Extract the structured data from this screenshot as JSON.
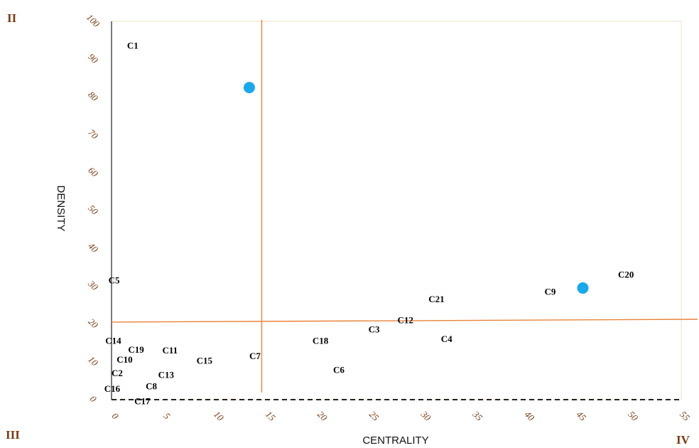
{
  "chart_data": {
    "type": "scatter",
    "xlabel": "CENTRALITY",
    "ylabel": "DENSITY",
    "xlim": [
      0,
      55
    ],
    "ylim": [
      0,
      100
    ],
    "x_ticks": [
      0,
      5,
      10,
      15,
      20,
      25,
      30,
      35,
      40,
      45,
      50,
      55
    ],
    "y_ticks": [
      0,
      10,
      20,
      30,
      40,
      50,
      60,
      70,
      80,
      90,
      100
    ],
    "x_tick_labels": [
      "0",
      "5",
      "10",
      "15",
      "20",
      "25",
      "30",
      "35",
      "40",
      "45",
      "50",
      "55"
    ],
    "y_tick_labels": [
      "0",
      "10",
      "20",
      "30",
      "40",
      "50",
      "60",
      "70",
      "80",
      "90",
      "100"
    ],
    "grid": false,
    "divider_lines": {
      "x": 14.5,
      "y": 20.5,
      "color": "#e8833a"
    },
    "quadrant_labels": {
      "top_left": "II",
      "bottom_left": "III",
      "bottom_right": "IV"
    },
    "markers": {
      "color": "#1aa8ea",
      "points": [
        {
          "x": 13.3,
          "y": 82.5
        },
        {
          "x": 45.5,
          "y": 29.5
        }
      ]
    },
    "point_labels": [
      {
        "text": "C1",
        "x": 1.5,
        "y": 93.5
      },
      {
        "text": "C5",
        "x": -0.3,
        "y": 31.5
      },
      {
        "text": "C14",
        "x": -0.6,
        "y": 15.5
      },
      {
        "text": "C19",
        "x": 1.6,
        "y": 13.2
      },
      {
        "text": "C11",
        "x": 4.9,
        "y": 13.0
      },
      {
        "text": "C10",
        "x": 0.5,
        "y": 10.5
      },
      {
        "text": "C15",
        "x": 8.2,
        "y": 10.2
      },
      {
        "text": "C7",
        "x": 13.3,
        "y": 11.5
      },
      {
        "text": "C2",
        "x": 0.0,
        "y": 7.0
      },
      {
        "text": "C13",
        "x": 4.5,
        "y": 6.5
      },
      {
        "text": "C8",
        "x": 3.3,
        "y": 3.5
      },
      {
        "text": "C16",
        "x": -0.7,
        "y": 2.8
      },
      {
        "text": "C17",
        "x": 2.2,
        "y": -0.5
      },
      {
        "text": "C18",
        "x": 19.4,
        "y": 15.5
      },
      {
        "text": "C6",
        "x": 21.4,
        "y": 7.8
      },
      {
        "text": "C3",
        "x": 24.8,
        "y": 18.5
      },
      {
        "text": "C12",
        "x": 27.6,
        "y": 21.0
      },
      {
        "text": "C4",
        "x": 31.8,
        "y": 16.0
      },
      {
        "text": "C21",
        "x": 30.6,
        "y": 26.5
      },
      {
        "text": "C9",
        "x": 41.8,
        "y": 28.5
      },
      {
        "text": "C20",
        "x": 48.9,
        "y": 33.0
      }
    ]
  }
}
